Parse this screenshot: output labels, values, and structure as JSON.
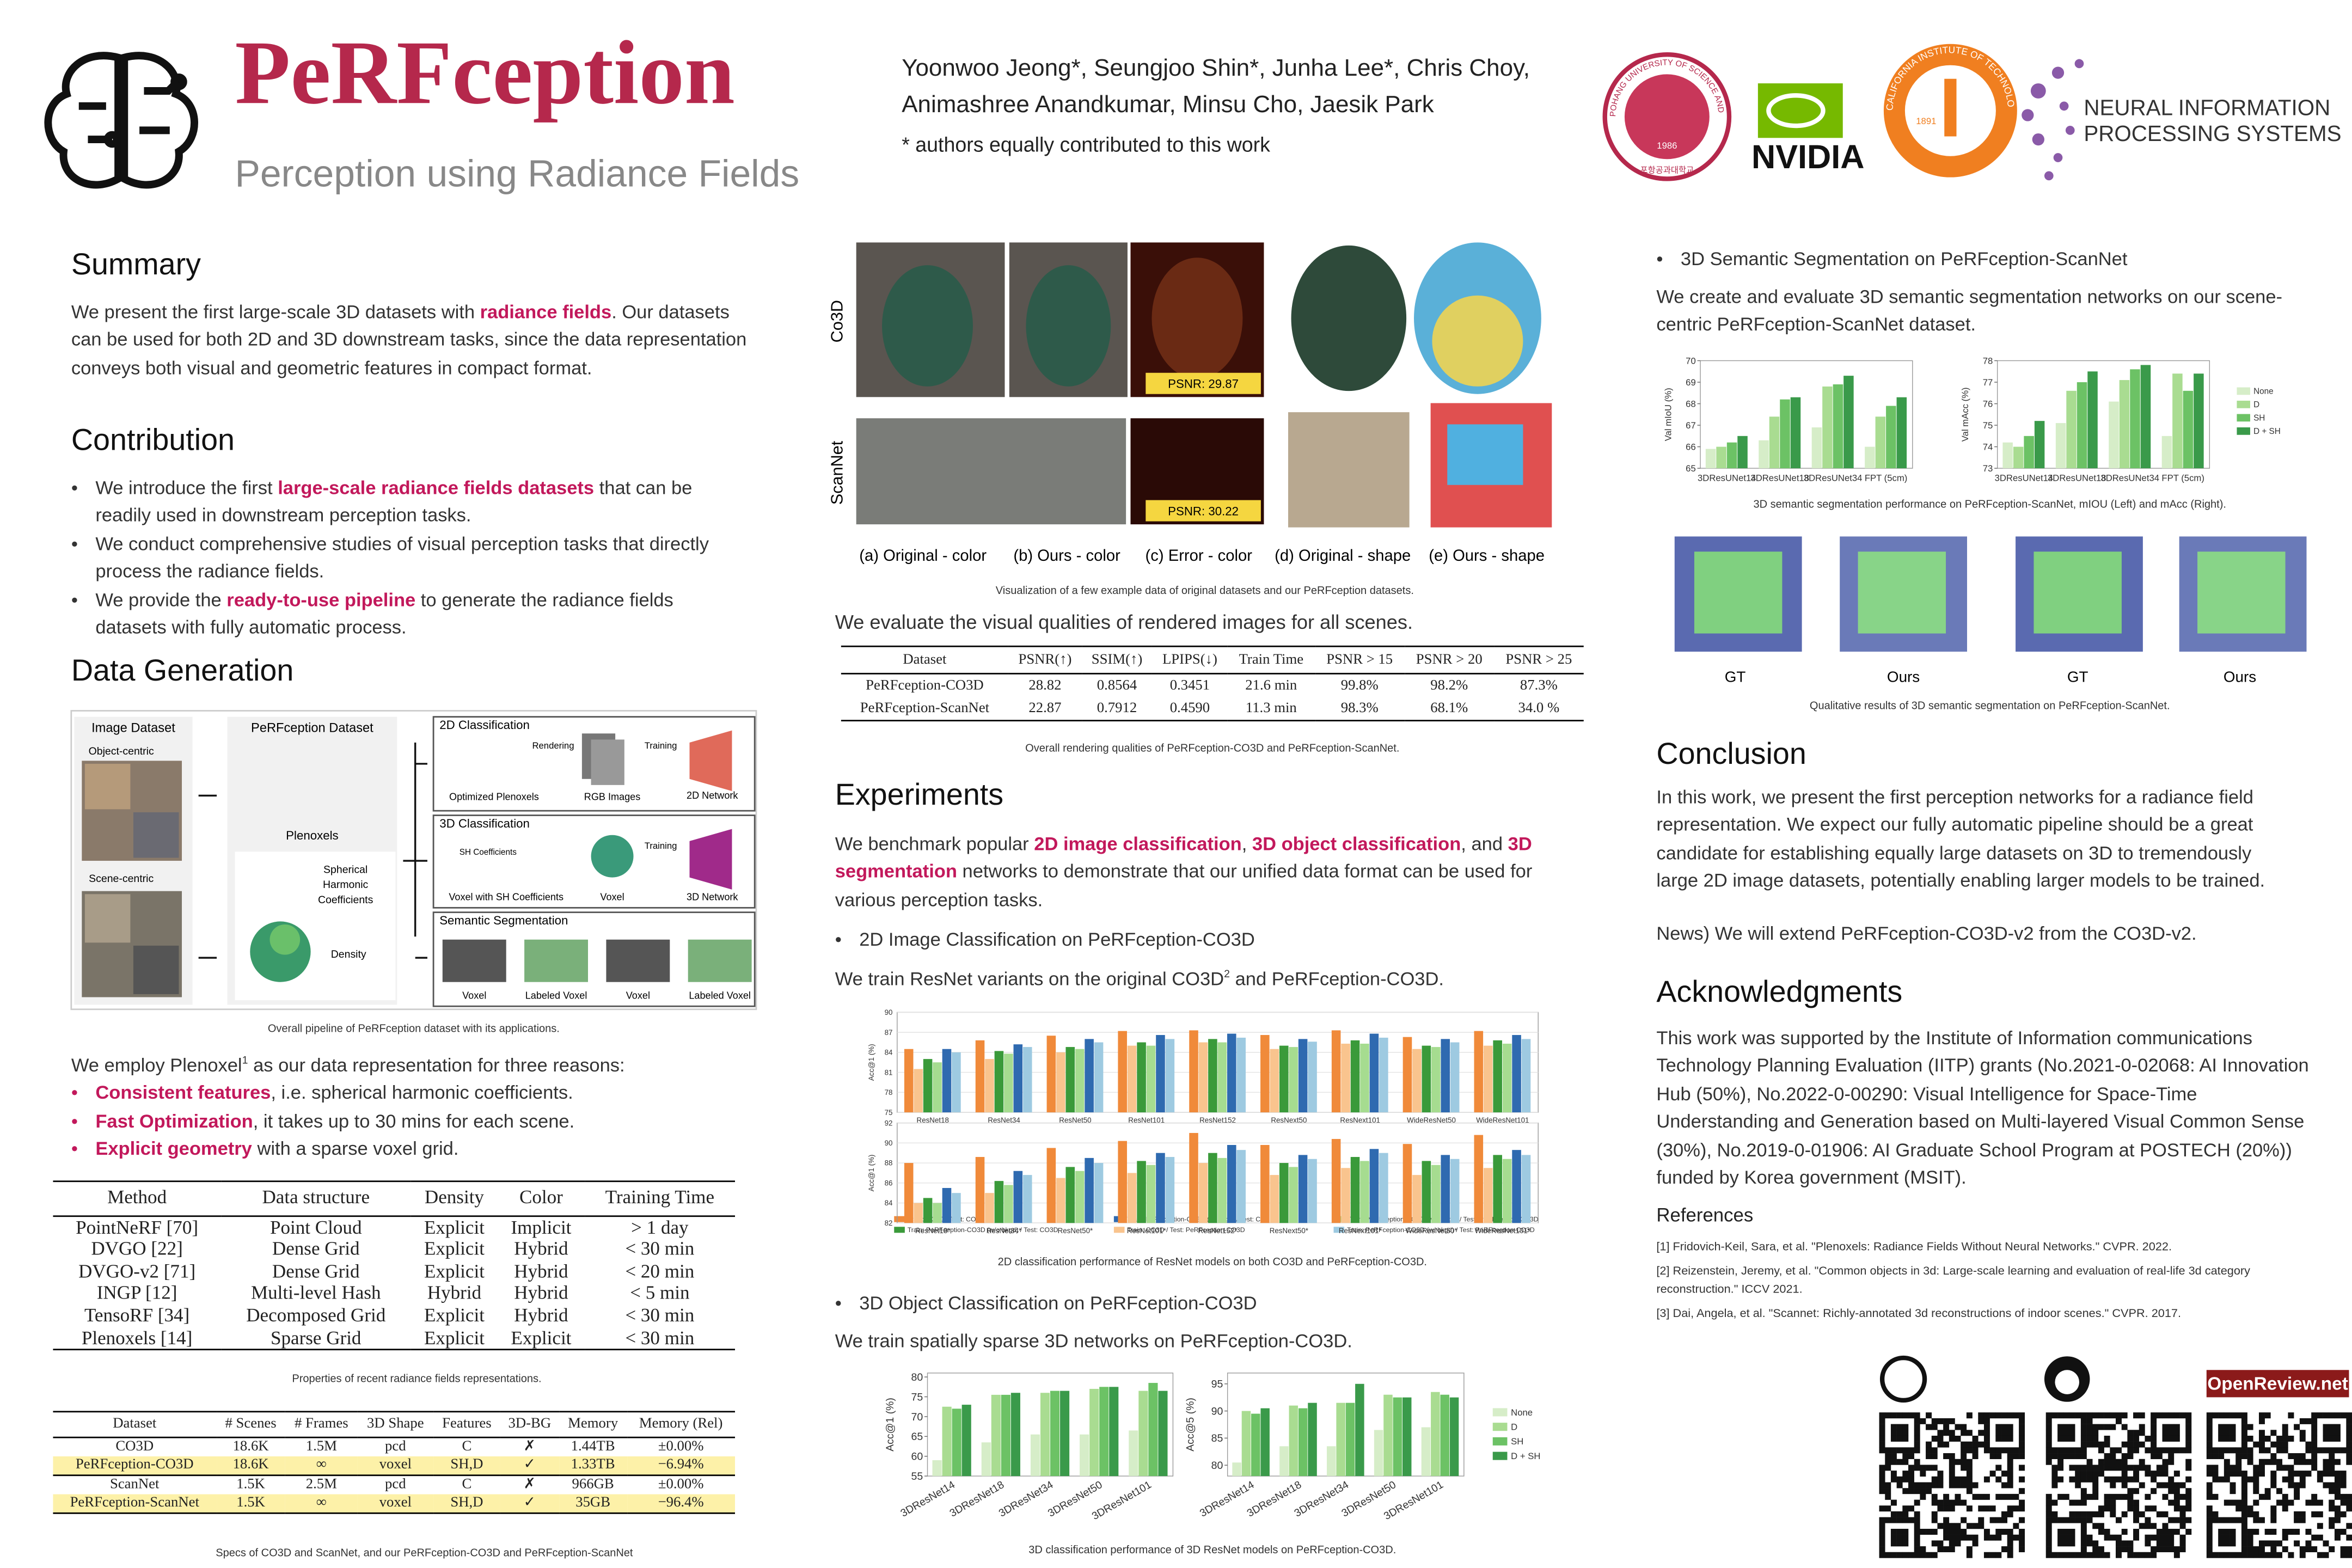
{
  "header": {
    "title": "PeRFception",
    "subtitle": "Perception using Radiance Fields",
    "authors": [
      "Yoonwoo Jeong*, Seungjoo Shin*, Junha Lee*, Chris Choy,",
      "Animashree Anandkumar, Minsu Cho, Jaesik Park"
    ],
    "note": "* authors equally contributed to this work",
    "logos": {
      "postech_ring": "POHANG UNIVERSITY OF SCIENCE AND TECHNOLOGY",
      "postech_year": "1986",
      "postech_korean": "포항공과대학교",
      "nvidia": "NVIDIA",
      "caltech_ring": "CALIFORNIA INSTITUTE OF TECHNOLOGY",
      "caltech_year": "1891",
      "neurips": [
        "NEURAL INFORMATION",
        "PROCESSING SYSTEMS"
      ]
    }
  },
  "summary": {
    "heading": "Summary",
    "text": [
      {
        "text": "We present the first large-scale 3D datasets with "
      },
      {
        "text": "radiance fields",
        "highlight": true
      },
      {
        "text": ". Our datasets can be used for both 2D and 3D downstream tasks, since the data representation conveys both visual and geometric features in compact format."
      }
    ]
  },
  "contribution": {
    "heading": "Contribution",
    "bullets": [
      [
        {
          "text": "We introduce the first "
        },
        {
          "text": "large-scale radiance fields datasets",
          "highlight": true
        },
        {
          "text": " that can be readily used in downstream perception tasks."
        }
      ],
      [
        {
          "text": "We conduct comprehensive studies of visual perception tasks that directly process the radiance fields."
        }
      ],
      [
        {
          "text": "We provide the "
        },
        {
          "text": "ready-to-use pipeline",
          "highlight": true
        },
        {
          "text": " to generate the radiance fields datasets with fully automatic process."
        }
      ]
    ]
  },
  "data_generation": {
    "heading": "Data Generation",
    "figure_labels": [
      "Image Dataset",
      "Object-centric",
      "Scene-centric",
      "PeRFception Dataset",
      "Plenoxels",
      "Spherical",
      "Harmonic",
      "Coefficients",
      "Density",
      "2D Classification",
      "Optimized Plenoxels",
      "Rendering",
      "RGB Images",
      "Training",
      "2D Network",
      "3D Classification",
      "SH Coefficients",
      "Voxel with SH Coefficients",
      "Voxel",
      "Training",
      "3D Network",
      "Semantic Segmentation",
      "Voxel",
      "Labeled Voxel",
      "Voxel",
      "Labeled Voxel"
    ],
    "caption": "Overall pipeline of PeRFception dataset with its applications.",
    "intro": [
      {
        "text": "We employ Plenoxel"
      },
      {
        "text": "1",
        "sup": true
      },
      {
        "text": " as our data representation for three reasons:"
      }
    ],
    "bullets": [
      [
        {
          "text": "Consistent features",
          "highlight": true
        },
        {
          "text": ", i.e. spherical harmonic coefficients."
        }
      ],
      [
        {
          "text": "Fast Optimization",
          "highlight": true
        },
        {
          "text": ", it takes up to 30 mins for each scene."
        }
      ],
      [
        {
          "text": "Explicit geometry",
          "highlight": true
        },
        {
          "text": " with a sparse voxel grid."
        }
      ]
    ],
    "table": {
      "columns": [
        "Method",
        "Data structure",
        "Density",
        "Color",
        "Training Time"
      ],
      "rows": [
        [
          "PointNeRF [70]",
          "Point Cloud",
          "Explicit",
          "Implicit",
          "> 1 day"
        ],
        [
          "DVGO [22]",
          "Dense Grid",
          "Explicit",
          "Hybrid",
          "< 30 min"
        ],
        [
          "DVGO-v2 [71]",
          "Dense Grid",
          "Explicit",
          "Hybrid",
          "< 20 min"
        ],
        [
          "INGP [12]",
          "Multi-level Hash",
          "Hybrid",
          "Hybrid",
          "< 5 min"
        ],
        [
          "TensoRF [34]",
          "Decomposed Grid",
          "Explicit",
          "Hybrid",
          "< 30 min"
        ],
        [
          "Plenoxels [14]",
          "Sparse Grid",
          "Explicit",
          "Explicit",
          "< 30 min"
        ]
      ]
    },
    "table_caption": "Properties of recent radiance fields representations.",
    "specs_table": {
      "columns": [
        "Dataset",
        "# Scenes",
        "# Frames",
        "3D Shape",
        "Features",
        "3D-BG",
        "Memory",
        "Memory (Rel)"
      ],
      "highlight_rows": [
        1
      ],
      "groups": [
        [
          [
            "CO3D",
            "18.6K",
            "1.5M",
            "pcd",
            "C",
            "✗",
            "1.44TB",
            "±0.00%"
          ],
          [
            "PeRFception-CO3D",
            "18.6K",
            "∞",
            "voxel",
            "SH,D",
            "✓",
            "1.33TB",
            "−6.94%"
          ]
        ],
        [
          [
            "ScanNet",
            "1.5K",
            "2.5M",
            "pcd",
            "C",
            "✗",
            "966GB",
            "±0.00%"
          ],
          [
            "PeRFception-ScanNet",
            "1.5K",
            "∞",
            "voxel",
            "SH,D",
            "✓",
            "35GB",
            "−96.4%"
          ]
        ]
      ]
    },
    "specs_caption": "Specs of CO3D and ScanNet, and our PeRFception-CO3D and PeRFception-ScanNet"
  },
  "visualization": {
    "row_labels": [
      "Co3D",
      "ScanNet"
    ],
    "psnr_labels": [
      "PSNR: 29.87",
      "PSNR: 30.22"
    ],
    "panel_labels": [
      "(a) Original - color",
      "(b) Ours - color",
      "(c) Error - color",
      "(d) Original - shape",
      "(e) Ours - shape"
    ],
    "caption": "Visualization of a few example data of original datasets and our PeRFception datasets.",
    "intro": "We evaluate the visual qualities of rendered images for all scenes.",
    "table": {
      "columns": [
        "Dataset",
        "PSNR(↑)",
        "SSIM(↑)",
        "LPIPS(↓)",
        "Train Time",
        "PSNR > 15",
        "PSNR > 20",
        "PSNR > 25"
      ],
      "rows": [
        [
          "PeRFception-CO3D",
          "28.82",
          "0.8564",
          "0.3451",
          "21.6 min",
          "99.8%",
          "98.2%",
          "87.3%"
        ],
        [
          "PeRFception-ScanNet",
          "22.87",
          "0.7912",
          "0.4590",
          "11.3 min",
          "98.3%",
          "68.1%",
          "34.0 %"
        ]
      ]
    },
    "table_caption": "Overall rendering qualities of PeRFception-CO3D and PeRFception-ScanNet."
  },
  "experiments": {
    "heading": "Experiments",
    "text": [
      {
        "text": "We benchmark popular "
      },
      {
        "text": "2D image classification",
        "highlight": true
      },
      {
        "text": ", "
      },
      {
        "text": "3D object classification",
        "highlight": true
      },
      {
        "text": ", and "
      },
      {
        "text": "3D segmentation",
        "highlight": true
      },
      {
        "text": " networks to demonstrate that our unified data format can be used for various perception tasks."
      }
    ],
    "cls2d": {
      "bullet": "2D Image Classification on PeRFception-CO3D",
      "text": [
        {
          "text": "We train ResNet variants on the original CO3D"
        },
        {
          "text": "2",
          "sup": true
        },
        {
          "text": " and PeRFception-CO3D."
        }
      ],
      "caption": "2D classification performance of ResNet models on both CO3D and PeRFception-CO3D."
    },
    "cls3d": {
      "bullet": "3D Object Classification on PeRFception-CO3D",
      "text": "We train spatially sparse 3D networks on PeRFception-CO3D.",
      "caption": "3D classification performance of 3D ResNet models on PeRFception-CO3D."
    }
  },
  "segmentation": {
    "bullet": "3D Semantic Segmentation on PeRFception-ScanNet",
    "text": "We create and evaluate 3D semantic segmentation networks on our scene-centric PeRFception-ScanNet dataset.",
    "caption": "3D semantic segmentation performance on PeRFception-ScanNet, mIOU (Left) and mAcc (Right).",
    "qual_labels": [
      "GT",
      "Ours",
      "GT",
      "Ours"
    ],
    "qual_caption": "Qualitative results of 3D semantic segmentation on PeRFception-ScanNet."
  },
  "conclusion": {
    "heading": "Conclusion",
    "text": "In this work, we present the first perception networks for a radiance field representation. We expect our fully automatic pipeline should be a great candidate for establishing equally large datasets on 3D to tremendously large 2D image datasets, potentially enabling larger models to be trained.",
    "news": "News) We will extend PeRFception-CO3D-v2 from the CO3D-v2."
  },
  "acknowledgments": {
    "heading": "Acknowledgments",
    "text": "This work was supported by the Institute of Information communications Technology Planning Evaluation (IITP) grants (No.2021-0-02068: AI Innovation Hub (50%), No.2022-0-00290: Visual Intelligence for Space-Time Understanding and Generation based on Multi-layered Visual Common Sense (30%), No.2019-0-01906: AI Graduate School Program at POSTECH (20%)) funded by Korea government (MSIT)."
  },
  "references": {
    "heading": "References",
    "items": [
      "[1] Fridovich-Keil, Sara, et al. \"Plenoxels: Radiance Fields Without Neural Networks.\"  CVPR. 2022.",
      "[2] Reizenstein, Jeremy, et al. \"Common objects in 3d: Large-scale learning and evaluation of real-life 3d category reconstruction.\" ICCV 2021.",
      "[3] Dai, Angela, et al. \"Scannet: Richly-annotated 3d reconstructions of indoor scenes.\" CVPR. 2017."
    ]
  },
  "footer": {
    "openreview": "OpenReview.net"
  },
  "chart_data": [
    {
      "type": "bar",
      "ylabel": "Acc@1 (%)",
      "categories": [
        "ResNet18",
        "ResNet34",
        "ResNet50",
        "ResNet101",
        "ResNet152",
        "ResNext50",
        "ResNext101",
        "WideResNet50",
        "WideResNet101"
      ],
      "ylim": [
        75,
        90
      ],
      "yticks": [
        75,
        78,
        81,
        84,
        87,
        90
      ],
      "grid": true,
      "legend": "bottom",
      "series": [
        {
          "name": "Train: CO3D / Test: CO3D",
          "color": "#f08a3a",
          "values": [
            84.5,
            85.8,
            86.5,
            87.2,
            87.3,
            86.6,
            87.3,
            86.3,
            87.2
          ]
        },
        {
          "name": "Train: CO3D / Test: PeRFception-CO3D",
          "color": "#f9c48e",
          "values": [
            81.5,
            83.0,
            84.0,
            85.0,
            85.5,
            84.5,
            85.3,
            84.5,
            85.0
          ]
        },
        {
          "name": "Train: PeRFception-CO3D (w/o bkgd) / Test: CO3D",
          "color": "#3a9a3a",
          "values": [
            83.0,
            84.2,
            84.8,
            85.5,
            86.0,
            85.0,
            85.8,
            85.0,
            85.8
          ]
        },
        {
          "name": "Train: PeRFception-CO3D (w/o bkgd) / Test: PeRFception-CO3D",
          "color": "#a6dc90",
          "values": [
            82.5,
            83.8,
            84.5,
            85.0,
            85.5,
            84.8,
            85.3,
            84.8,
            85.3
          ]
        },
        {
          "name": "Train: PeRFception-CO3D (w/ bkgd) / Test: CO3D",
          "color": "#2f6ab0",
          "values": [
            84.5,
            85.2,
            86.0,
            86.6,
            86.8,
            86.0,
            86.8,
            86.0,
            86.6
          ]
        },
        {
          "name": "Train: PeRFception-CO3D (w/ bkgd) / Test: PeRFception-CO3D",
          "color": "#9ecae1",
          "values": [
            84.0,
            84.8,
            85.5,
            86.0,
            86.2,
            85.6,
            86.2,
            85.5,
            86.0
          ]
        }
      ]
    },
    {
      "type": "bar",
      "ylabel": "Acc@1 (%)",
      "categories": [
        "ResNet18*",
        "ResNet34*",
        "ResNet50*",
        "ResNet101*",
        "ResNet152*",
        "ResNext50*",
        "ResNext101*",
        "WideResNet50*",
        "WideResNet101*"
      ],
      "ylim": [
        82,
        92
      ],
      "yticks": [
        82,
        84,
        86,
        88,
        90,
        92
      ],
      "grid": true,
      "series": [
        {
          "color": "#f08a3a",
          "values": [
            88.0,
            88.6,
            89.5,
            90.2,
            91.0,
            89.8,
            90.4,
            89.9,
            90.8
          ]
        },
        {
          "color": "#f9c48e",
          "values": [
            84.0,
            85.0,
            86.5,
            87.0,
            88.0,
            86.8,
            87.5,
            86.8,
            87.5
          ]
        },
        {
          "color": "#3a9a3a",
          "values": [
            84.5,
            86.2,
            87.6,
            88.2,
            89.0,
            88.0,
            88.6,
            88.2,
            88.8
          ]
        },
        {
          "color": "#a6dc90",
          "values": [
            84.0,
            85.8,
            87.2,
            87.8,
            88.5,
            87.6,
            88.2,
            87.8,
            88.4
          ]
        },
        {
          "color": "#2f6ab0",
          "values": [
            85.5,
            87.2,
            88.5,
            89.0,
            89.8,
            88.8,
            89.4,
            88.8,
            89.3
          ]
        },
        {
          "color": "#9ecae1",
          "values": [
            85.0,
            86.8,
            88.0,
            88.6,
            89.3,
            88.4,
            89.0,
            88.4,
            88.8
          ]
        }
      ]
    },
    {
      "type": "bar",
      "ylabel": "Acc@1 (%)",
      "categories": [
        "3DResNet14",
        "3DResNet18",
        "3DResNet34",
        "3DResNet50",
        "3DResNet101"
      ],
      "ylim": [
        55,
        81
      ],
      "yticks": [
        55,
        60,
        65,
        70,
        75,
        80
      ],
      "grid": false,
      "xtick_rotation": -30,
      "series": [
        {
          "color": "#d6edc8",
          "values": [
            59,
            63.5,
            65.5,
            65.5,
            66.5
          ]
        },
        {
          "color": "#a9dc91",
          "values": [
            72.5,
            75.5,
            76,
            77,
            76.5
          ]
        },
        {
          "color": "#6cc265",
          "values": [
            72,
            75.5,
            76.5,
            77.5,
            78.5
          ]
        },
        {
          "color": "#3a9a4a",
          "values": [
            73,
            76,
            76.5,
            77.5,
            76.5
          ]
        }
      ]
    },
    {
      "type": "bar",
      "ylabel": "Acc@5 (%)",
      "categories": [
        "3DResNet14",
        "3DResNet18",
        "3DResNet34",
        "3DResNet50",
        "3DResNet101"
      ],
      "ylim": [
        78,
        97
      ],
      "yticks": [
        80,
        85,
        90,
        95
      ],
      "grid": false,
      "xtick_rotation": -30,
      "legend": "right",
      "series": [
        {
          "name": "None",
          "color": "#d6edc8",
          "values": [
            80.5,
            83.5,
            83.5,
            86.5,
            87
          ]
        },
        {
          "name": "D",
          "color": "#a9dc91",
          "values": [
            90,
            91,
            91.5,
            93,
            93.5
          ]
        },
        {
          "name": "SH",
          "color": "#6cc265",
          "values": [
            89.5,
            90.5,
            91.5,
            92.5,
            93
          ]
        },
        {
          "name": "D + SH",
          "color": "#3a9a4a",
          "values": [
            90.5,
            91.5,
            95,
            92.5,
            92.5
          ]
        }
      ]
    },
    {
      "type": "bar",
      "ylabel": "Val mIoU (%)",
      "categories": [
        "3DResUNet14",
        "3DResUNet18",
        "3DResUNet34",
        "FPT (5cm)"
      ],
      "ylim": [
        65,
        70
      ],
      "yticks": [
        65,
        66,
        67,
        68,
        69,
        70
      ],
      "grid": false,
      "series": [
        {
          "color": "#d6edc8",
          "values": [
            65.9,
            66.3,
            66.9,
            66.0
          ]
        },
        {
          "color": "#a9dc91",
          "values": [
            66.0,
            67.4,
            68.8,
            67.4
          ]
        },
        {
          "color": "#6cc265",
          "values": [
            66.2,
            68.2,
            68.9,
            67.9
          ]
        },
        {
          "color": "#3a9a4a",
          "values": [
            66.5,
            68.3,
            69.3,
            68.3
          ]
        }
      ]
    },
    {
      "type": "bar",
      "ylabel": "Val mAcc (%)",
      "categories": [
        "3DResUNet14",
        "3DResUNet18",
        "3DResUNet34",
        "FPT (5cm)"
      ],
      "ylim": [
        73,
        78
      ],
      "yticks": [
        73,
        74,
        75,
        76,
        77,
        78
      ],
      "grid": false,
      "legend": "right",
      "series": [
        {
          "name": "None",
          "color": "#d6edc8",
          "values": [
            74.2,
            75.1,
            76.1,
            74.5
          ]
        },
        {
          "name": "D",
          "color": "#a9dc91",
          "values": [
            74.0,
            76.6,
            77.1,
            77.4
          ]
        },
        {
          "name": "SH",
          "color": "#6cc265",
          "values": [
            74.5,
            77.0,
            77.6,
            76.6
          ]
        },
        {
          "name": "D + SH",
          "color": "#3a9a4a",
          "values": [
            75.2,
            77.5,
            77.8,
            77.4
          ]
        }
      ]
    }
  ]
}
